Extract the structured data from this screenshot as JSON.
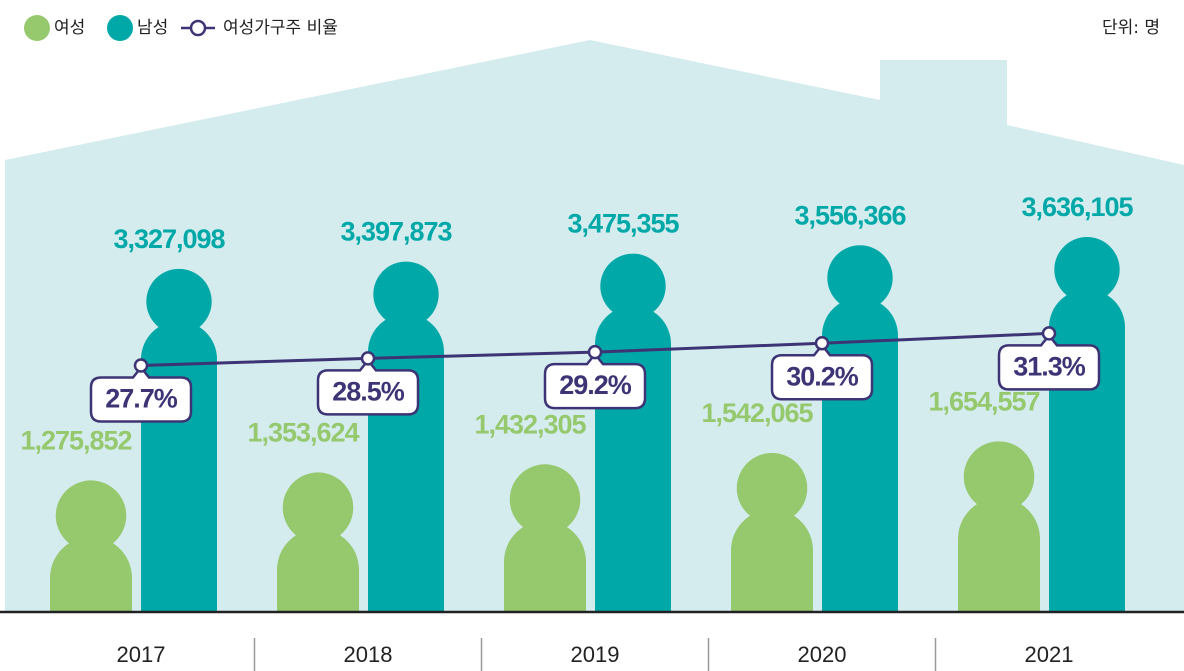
{
  "chart_data": {
    "type": "bar",
    "unit_note": "단위: 명",
    "categories": [
      "2017",
      "2018",
      "2019",
      "2020",
      "2021"
    ],
    "series": [
      {
        "name": "여성",
        "color": "#96c86e",
        "values": [
          1275852,
          1353624,
          1432305,
          1542065,
          1654557
        ],
        "value_labels": [
          "1,275,852",
          "1,353,624",
          "1,432,305",
          "1,542,065",
          "1,654,557"
        ]
      },
      {
        "name": "남성",
        "color": "#00a8a8",
        "values": [
          3327098,
          3397873,
          3475355,
          3556366,
          3636105
        ],
        "value_labels": [
          "3,327,098",
          "3,397,873",
          "3,475,355",
          "3,556,366",
          "3,636,105"
        ]
      },
      {
        "name": "여성가구주 비율",
        "type": "line",
        "axis": "y2",
        "color": "#3d3475",
        "values": [
          27.7,
          28.5,
          29.2,
          30.2,
          31.3
        ],
        "value_labels": [
          "27.7%",
          "28.5%",
          "29.2%",
          "30.2%",
          "31.3%"
        ]
      }
    ]
  }
}
